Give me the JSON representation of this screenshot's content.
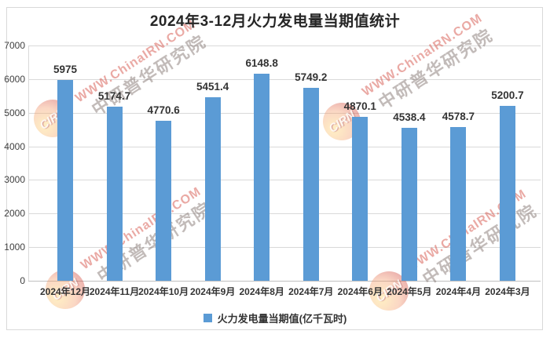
{
  "title": "2024年3-12月火力发电量当期值统计",
  "legend": {
    "label": "火力发电量当期值(亿千瓦时)",
    "marker_color": "#5b9bd5"
  },
  "watermark": {
    "text_red": "WWW.ChinaIRN.COM",
    "text_gray": "中研普华研究院",
    "logo_text": "CIRN"
  },
  "chart_data": {
    "type": "bar",
    "title": "2024年3-12月火力发电量当期值统计",
    "categories": [
      "2024年12月",
      "2024年11月",
      "2024年10月",
      "2024年9月",
      "2024年8月",
      "2024年7月",
      "2024年6月",
      "2024年5月",
      "2024年4月",
      "2024年3月"
    ],
    "values": [
      5975,
      5174.7,
      4770.6,
      5451.4,
      6148.8,
      5749.2,
      4870.1,
      4538.4,
      4578.7,
      5200.7
    ],
    "value_labels": [
      "5975",
      "5174.7",
      "4770.6",
      "5451.4",
      "6148.8",
      "5749.2",
      "4870.1",
      "4538.4",
      "4578.7",
      "5200.7"
    ],
    "series_name": "火力发电量当期值(亿千瓦时)",
    "xlabel": "",
    "ylabel": "",
    "ylim": [
      0,
      7000
    ],
    "yticks": [
      0,
      1000,
      2000,
      3000,
      4000,
      5000,
      6000,
      7000
    ],
    "bar_color": "#5b9bd5",
    "grid": true,
    "legend_position": "bottom"
  }
}
